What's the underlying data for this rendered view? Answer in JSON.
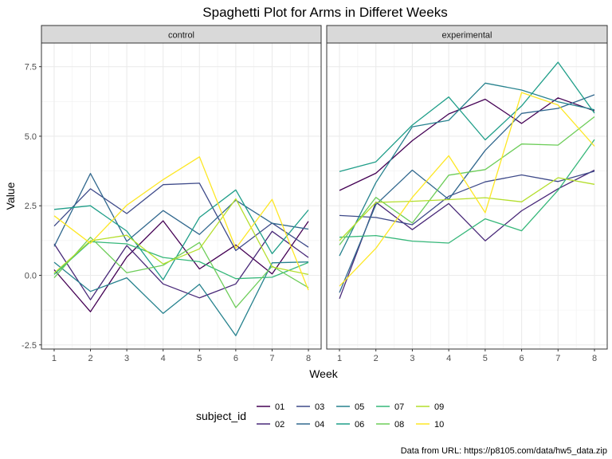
{
  "chart_data": {
    "type": "line",
    "title": "Spaghetti Plot for Arms in Differet Weeks",
    "xlabel": "Week",
    "ylabel": "Value",
    "caption": "Data from URL: https://p8105.com/data/hw5_data.zip",
    "x": [
      1,
      2,
      3,
      4,
      5,
      6,
      7,
      8
    ],
    "xlim": [
      0.65,
      8.35
    ],
    "ylim": [
      -2.65,
      8.35
    ],
    "yticks": [
      -2.5,
      0.0,
      2.5,
      5.0,
      7.5
    ],
    "ytick_labels": [
      "-2.5",
      "0.0",
      "2.5",
      "5.0",
      "7.5"
    ],
    "grid": true,
    "legend": {
      "title": "subject_id",
      "position": "bottom",
      "entries": [
        "01",
        "02",
        "03",
        "04",
        "05",
        "06",
        "07",
        "08",
        "09",
        "10"
      ]
    },
    "colors": {
      "01": "#440154",
      "02": "#482878",
      "03": "#3E4A89",
      "04": "#31688E",
      "05": "#26828E",
      "06": "#1F9E89",
      "07": "#35B779",
      "08": "#6DCD59",
      "09": "#B4DE2C",
      "10": "#FDE725"
    },
    "panels": [
      {
        "label": "control",
        "series": [
          {
            "name": "01",
            "values": [
              0.2,
              -1.31,
              0.66,
              1.96,
              0.23,
              1.09,
              0.05,
              1.94
            ]
          },
          {
            "name": "02",
            "values": [
              1.13,
              -0.88,
              1.07,
              -0.31,
              -0.81,
              -0.31,
              1.58,
              0.64
            ]
          },
          {
            "name": "03",
            "values": [
              1.77,
              3.11,
              2.22,
              3.26,
              3.31,
              0.89,
              1.88,
              1.01
            ]
          },
          {
            "name": "04",
            "values": [
              1.04,
              3.66,
              1.22,
              2.33,
              1.47,
              2.7,
              1.87,
              1.66
            ]
          },
          {
            "name": "05",
            "values": [
              0.47,
              -0.58,
              -0.09,
              -1.37,
              -0.32,
              -2.17,
              0.45,
              0.48
            ]
          },
          {
            "name": "06",
            "values": [
              2.37,
              2.5,
              1.59,
              -0.16,
              2.08,
              3.07,
              0.78,
              2.35
            ]
          },
          {
            "name": "07",
            "values": [
              0.03,
              1.21,
              1.13,
              0.64,
              0.49,
              -0.12,
              -0.07,
              0.46
            ]
          },
          {
            "name": "08",
            "values": [
              -0.09,
              1.37,
              0.09,
              0.36,
              1.18,
              -1.16,
              0.33,
              -0.44
            ]
          },
          {
            "name": "09",
            "values": [
              0.08,
              1.24,
              1.44,
              0.41,
              0.95,
              2.75,
              0.3,
              0.03
            ]
          },
          {
            "name": "10",
            "values": [
              2.14,
              1.15,
              2.52,
              3.44,
              4.26,
              0.97,
              2.73,
              -0.53
            ]
          }
        ]
      },
      {
        "label": "experimental",
        "series": [
          {
            "name": "01",
            "values": [
              3.05,
              3.67,
              4.84,
              5.8,
              6.33,
              5.46,
              6.38,
              5.91
            ]
          },
          {
            "name": "02",
            "values": [
              -0.84,
              2.63,
              1.64,
              2.58,
              1.24,
              2.32,
              3.11,
              3.78
            ]
          },
          {
            "name": "03",
            "values": [
              2.15,
              2.08,
              1.82,
              2.84,
              3.36,
              3.61,
              3.37,
              3.74
            ]
          },
          {
            "name": "04",
            "values": [
              -0.62,
              2.54,
              3.78,
              2.73,
              4.49,
              5.82,
              6.0,
              6.49
            ]
          },
          {
            "name": "05",
            "values": [
              0.7,
              3.33,
              5.34,
              5.57,
              6.91,
              6.66,
              6.24,
              5.95
            ]
          },
          {
            "name": "06",
            "values": [
              3.73,
              4.08,
              5.4,
              6.41,
              4.87,
              6.09,
              7.66,
              5.83
            ]
          },
          {
            "name": "07",
            "values": [
              1.37,
              1.43,
              1.23,
              1.16,
              2.03,
              1.6,
              3.06,
              4.88
            ]
          },
          {
            "name": "08",
            "values": [
              1.09,
              2.8,
              1.88,
              3.6,
              3.8,
              4.72,
              4.68,
              5.7
            ]
          },
          {
            "name": "09",
            "values": [
              1.25,
              2.62,
              2.66,
              2.72,
              2.79,
              2.64,
              3.51,
              3.27
            ]
          },
          {
            "name": "10",
            "values": [
              -0.39,
              0.97,
              2.8,
              4.3,
              2.25,
              6.57,
              6.12,
              4.64
            ]
          }
        ]
      }
    ]
  }
}
